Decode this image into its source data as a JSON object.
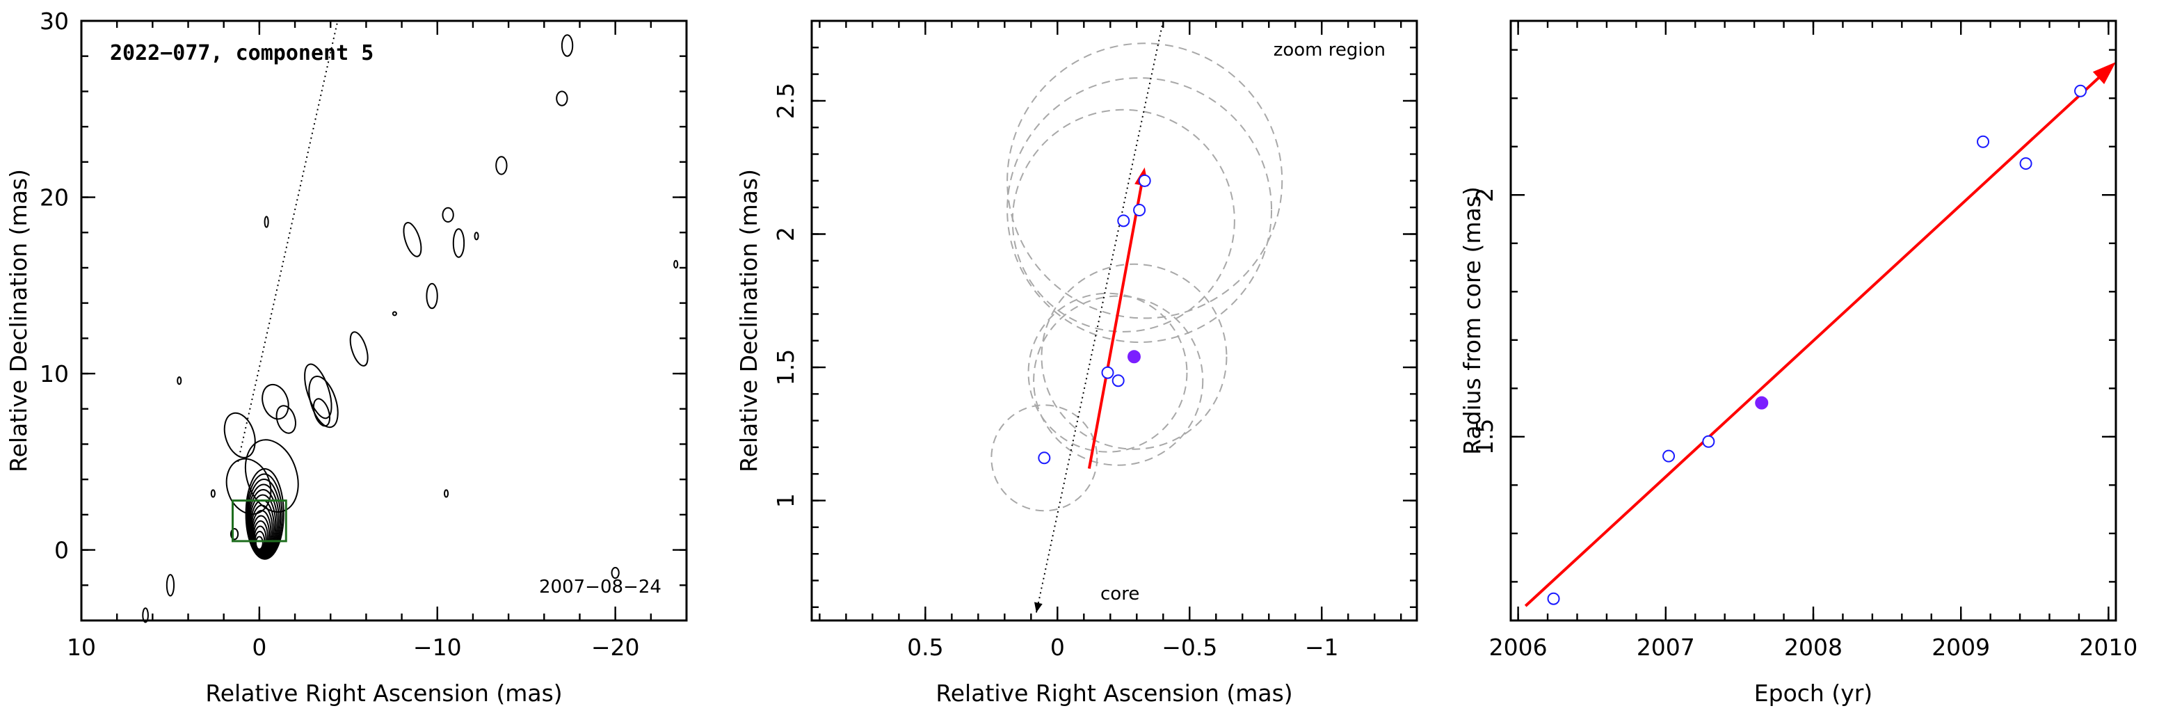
{
  "chart_data": [
    {
      "type": "contour",
      "title": "2022−077, component 5",
      "annotation": "2007−08−24",
      "xlabel": "Relative Right Ascension (mas)",
      "ylabel": "Relative Declination (mas)",
      "xlim": [
        10,
        -24
      ],
      "ylim": [
        -4,
        30
      ],
      "xticks": [
        "10",
        "0",
        "−10",
        "−20"
      ],
      "yticks": [
        "0",
        "10",
        "20",
        "30"
      ],
      "xtick_values": [
        10,
        0,
        -10,
        -20
      ],
      "ytick_values": [
        0,
        10,
        20,
        30
      ],
      "jet_direction_line": {
        "from": [
          1.2,
          5
        ],
        "to": [
          -4.4,
          30
        ]
      },
      "zoom_box": {
        "x": [
          1.5,
          -1.5
        ],
        "y": [
          0.5,
          2.8
        ],
        "color": "#1f6e1f"
      }
    },
    {
      "type": "scatter",
      "xlabel": "Relative Right Ascension (mas)",
      "ylabel": "Relative Declination (mas)",
      "annotations": [
        "zoom region",
        "core"
      ],
      "xlim": [
        0.93,
        -1.36
      ],
      "ylim": [
        0.55,
        2.8
      ],
      "xticks": [
        "0.5",
        "0",
        "−0.5",
        "−1"
      ],
      "yticks": [
        "1",
        "1.5",
        "2",
        "2.5"
      ],
      "xtick_values": [
        0.5,
        0,
        -0.5,
        -1
      ],
      "ytick_values": [
        1,
        1.5,
        2,
        2.5
      ],
      "points_open": [
        {
          "x": 0.05,
          "y": 1.16
        },
        {
          "x": -0.19,
          "y": 1.48
        },
        {
          "x": -0.23,
          "y": 1.45
        },
        {
          "x": -0.25,
          "y": 2.05
        },
        {
          "x": -0.31,
          "y": 2.09
        },
        {
          "x": -0.33,
          "y": 2.2
        }
      ],
      "points_filled": [
        {
          "x": -0.29,
          "y": 1.54
        }
      ],
      "error_circles": [
        {
          "x": 0.05,
          "y": 1.16,
          "r": 0.2
        },
        {
          "x": -0.19,
          "y": 1.48,
          "r": 0.3
        },
        {
          "x": -0.23,
          "y": 1.45,
          "r": 0.32
        },
        {
          "x": -0.29,
          "y": 1.54,
          "r": 0.35
        },
        {
          "x": -0.25,
          "y": 2.05,
          "r": 0.42
        },
        {
          "x": -0.31,
          "y": 2.09,
          "r": 0.5
        },
        {
          "x": -0.33,
          "y": 2.2,
          "r": 0.52
        }
      ],
      "motion_arrow": {
        "from": [
          -0.12,
          1.12
        ],
        "to": [
          -0.33,
          2.25
        ],
        "color": "#ff0000"
      },
      "core_line": {
        "from": [
          -0.4,
          2.8
        ],
        "to": [
          0.08,
          0.58
        ]
      },
      "point_color": "#1a1aff",
      "filled_color": "#7b1fff"
    },
    {
      "type": "scatter",
      "xlabel": "Epoch (yr)",
      "ylabel": "Radius from core (mas)",
      "xlim": [
        2005.95,
        2010.05
      ],
      "ylim": [
        1.12,
        2.36
      ],
      "xticks": [
        "2006",
        "2007",
        "2008",
        "2009",
        "2010"
      ],
      "yticks": [
        "1.5",
        "2"
      ],
      "xtick_values": [
        2006,
        2007,
        2008,
        2009,
        2010
      ],
      "ytick_values": [
        1.5,
        2
      ],
      "points_open": [
        {
          "x": 2006.24,
          "y": 1.165
        },
        {
          "x": 2007.02,
          "y": 1.46
        },
        {
          "x": 2007.29,
          "y": 1.49
        },
        {
          "x": 2009.15,
          "y": 2.11
        },
        {
          "x": 2009.44,
          "y": 2.065
        },
        {
          "x": 2009.81,
          "y": 2.215
        }
      ],
      "points_filled": [
        {
          "x": 2007.65,
          "y": 1.57
        }
      ],
      "fit_arrow": {
        "from": [
          2006.05,
          1.15
        ],
        "to": [
          2010.05,
          2.275
        ],
        "color": "#ff0000"
      },
      "point_color": "#1a1aff",
      "filled_color": "#7b1fff"
    }
  ]
}
